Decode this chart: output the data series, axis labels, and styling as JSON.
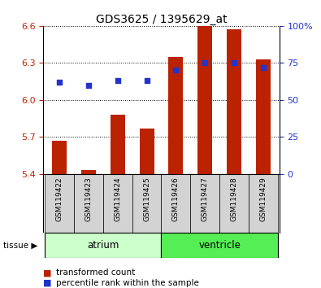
{
  "title": "GDS3625 / 1395629_at",
  "samples": [
    "GSM119422",
    "GSM119423",
    "GSM119424",
    "GSM119425",
    "GSM119426",
    "GSM119427",
    "GSM119428",
    "GSM119429"
  ],
  "transformed_count": [
    5.67,
    5.43,
    5.88,
    5.77,
    6.35,
    6.6,
    6.57,
    6.33
  ],
  "percentile_rank": [
    62,
    60,
    63,
    63,
    70,
    75,
    75,
    72
  ],
  "ylim_left": [
    5.4,
    6.6
  ],
  "ylim_right": [
    0,
    100
  ],
  "yticks_left": [
    5.4,
    5.7,
    6.0,
    6.3,
    6.6
  ],
  "yticks_right": [
    0,
    25,
    50,
    75,
    100
  ],
  "ytick_labels_right": [
    "0",
    "25",
    "50",
    "75",
    "100%"
  ],
  "bar_color": "#bb2200",
  "dot_color": "#2233cc",
  "bar_bottom": 5.4,
  "groups": [
    {
      "label": "atrium",
      "start": 0,
      "end": 3,
      "color": "#ccffcc"
    },
    {
      "label": "ventricle",
      "start": 4,
      "end": 7,
      "color": "#55ee55"
    }
  ],
  "tissue_label": "tissue",
  "legend_bar_label": "transformed count",
  "legend_dot_label": "percentile rank within the sample",
  "background_color": "#ffffff",
  "xticklabel_bg": "#d3d3d3",
  "bar_width": 0.5
}
